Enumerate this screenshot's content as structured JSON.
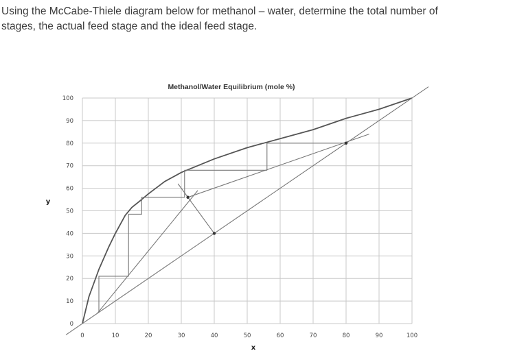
{
  "question": {
    "line1": "Using the McCabe-Thiele diagram below for methanol – water, determine the total number of",
    "line2": "stages, the actual feed stage and the ideal feed stage."
  },
  "chart_data": {
    "type": "line",
    "title": "Methanol/Water Equilibrium (mole %)",
    "xlabel": "x",
    "ylabel": "y",
    "xlim": [
      0,
      100
    ],
    "ylim": [
      0,
      100
    ],
    "xticks": [
      0,
      10,
      20,
      30,
      40,
      50,
      60,
      70,
      80,
      90,
      100
    ],
    "yticks": [
      0,
      10,
      20,
      30,
      40,
      50,
      60,
      70,
      80,
      90,
      100
    ],
    "grid": true,
    "colors": {
      "curve": "#555555",
      "grid": "#c8c8c8",
      "lines": "#777777"
    },
    "series": [
      {
        "kind": "equilibrium",
        "points": [
          [
            0,
            0
          ],
          [
            2,
            12
          ],
          [
            5,
            24
          ],
          [
            8,
            34
          ],
          [
            10,
            40
          ],
          [
            13,
            48
          ],
          [
            15,
            51.5
          ],
          [
            18,
            55
          ],
          [
            20,
            57.5
          ],
          [
            25,
            63
          ],
          [
            30,
            67
          ],
          [
            40,
            73
          ],
          [
            50,
            78
          ],
          [
            60,
            82
          ],
          [
            70,
            86
          ],
          [
            80,
            91
          ],
          [
            90,
            95
          ],
          [
            100,
            100
          ]
        ]
      },
      {
        "kind": "diagonal",
        "points": [
          [
            -5,
            -5
          ],
          [
            105,
            105
          ]
        ]
      },
      {
        "kind": "rectifying-operating-line",
        "points": [
          [
            32,
            56
          ],
          [
            87,
            84
          ]
        ]
      },
      {
        "kind": "stripping-operating-line",
        "points": [
          [
            4.5,
            4.5
          ],
          [
            35,
            59
          ]
        ]
      },
      {
        "kind": "q-line",
        "points": [
          [
            29,
            62
          ],
          [
            40,
            40
          ]
        ]
      },
      {
        "kind": "stage-steps",
        "points": [
          [
            80,
            80
          ],
          [
            56,
            80
          ],
          [
            56,
            68
          ],
          [
            31,
            68
          ],
          [
            31,
            56
          ],
          [
            18,
            56
          ],
          [
            18,
            48.5
          ],
          [
            14,
            48.5
          ],
          [
            14,
            21
          ],
          [
            5,
            21
          ],
          [
            5,
            5
          ]
        ]
      }
    ],
    "markers": [
      [
        80,
        80
      ],
      [
        40,
        40
      ],
      [
        32,
        56
      ]
    ]
  }
}
